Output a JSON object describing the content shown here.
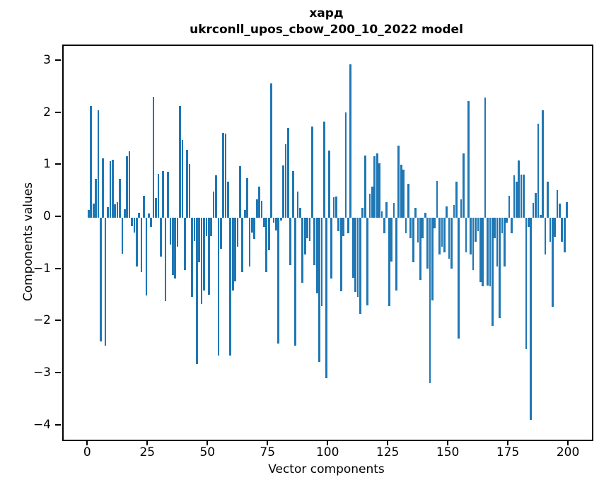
{
  "title": {
    "line1": "хард",
    "line2": "ukrconll_upos_cbow_200_10_2022 model"
  },
  "chart_data": {
    "type": "bar",
    "title": "хард\nukrconll_upos_cbow_200_10_2022 model",
    "xlabel": "Vector components",
    "ylabel": "Components values",
    "x_ticks": [
      0,
      25,
      50,
      75,
      100,
      125,
      150,
      175,
      200
    ],
    "y_ticks": [
      3,
      2,
      1,
      0,
      -1,
      -2,
      -3,
      -4
    ],
    "xlim": [
      -10.4,
      209.4
    ],
    "ylim": [
      -4.26,
      3.3
    ],
    "bar_color": "#1f77b4",
    "bar_width": 0.8,
    "grid": false,
    "legend": null,
    "n_points": 200,
    "values": [
      0.15,
      2.15,
      0.28,
      0.75,
      2.06,
      -2.38,
      1.14,
      -2.45,
      0.2,
      1.09,
      1.12,
      0.26,
      0.3,
      0.75,
      -0.69,
      0.17,
      1.18,
      1.28,
      -0.16,
      -0.29,
      -0.93,
      0.1,
      -1.05,
      0.42,
      -1.49,
      0.08,
      -0.17,
      2.32,
      0.38,
      0.85,
      -0.74,
      0.9,
      -1.6,
      0.88,
      -0.51,
      -1.1,
      -1.17,
      -0.55,
      2.15,
      1.5,
      -1.0,
      1.3,
      1.04,
      -1.52,
      -0.45,
      -2.81,
      -0.85,
      -1.65,
      -1.4,
      -0.35,
      -1.48,
      -0.35,
      0.5,
      0.82,
      -2.65,
      -0.6,
      1.63,
      1.62,
      0.7,
      -2.65,
      -1.4,
      -1.22,
      -0.55,
      0.99,
      -1.05,
      0.15,
      0.76,
      -0.94,
      -0.28,
      -0.41,
      0.35,
      0.6,
      0.33,
      -0.17,
      -1.05,
      -0.62,
      2.58,
      -0.1,
      -0.24,
      -2.41,
      -0.05,
      1.0,
      1.42,
      1.72,
      -0.91,
      0.9,
      -2.45,
      0.51,
      0.19,
      -1.25,
      -0.71,
      -0.39,
      -0.44,
      1.75,
      -0.91,
      -1.45,
      -2.77,
      -1.7,
      1.85,
      -3.08,
      1.29,
      -1.16,
      0.4,
      0.41,
      -0.25,
      -1.41,
      -0.35,
      2.03,
      -0.3,
      2.95,
      -1.15,
      -1.43,
      -1.52,
      -1.84,
      0.19,
      1.2,
      -1.68,
      0.47,
      0.6,
      1.18,
      1.24,
      1.05,
      0.13,
      -0.3,
      0.3,
      -1.69,
      -0.84,
      0.29,
      -1.39,
      1.39,
      1.02,
      0.93,
      -0.3,
      0.66,
      -0.39,
      -0.85,
      0.19,
      -0.48,
      -1.19,
      -0.39,
      0.1,
      -0.98,
      -3.17,
      -1.59,
      -0.2,
      0.71,
      -0.71,
      -0.55,
      -0.67,
      0.22,
      -0.78,
      -0.98,
      0.24,
      0.69,
      -2.32,
      0.35,
      1.24,
      -0.66,
      2.24,
      -0.7,
      -1.0,
      -0.46,
      -0.26,
      -1.24,
      -1.31,
      2.31,
      -1.3,
      -1.32,
      -2.07,
      -0.39,
      -0.94,
      -1.92,
      -0.3,
      -0.94,
      -0.1,
      0.42,
      -0.3,
      0.82,
      0.7,
      1.1,
      0.83,
      0.83,
      -2.52,
      -0.17,
      -3.88,
      0.29,
      0.48,
      1.81,
      0.05,
      2.07,
      -0.71,
      0.7,
      -0.46,
      -1.71,
      -0.37,
      0.53,
      0.28,
      -0.46,
      -0.67,
      0.3
    ]
  }
}
